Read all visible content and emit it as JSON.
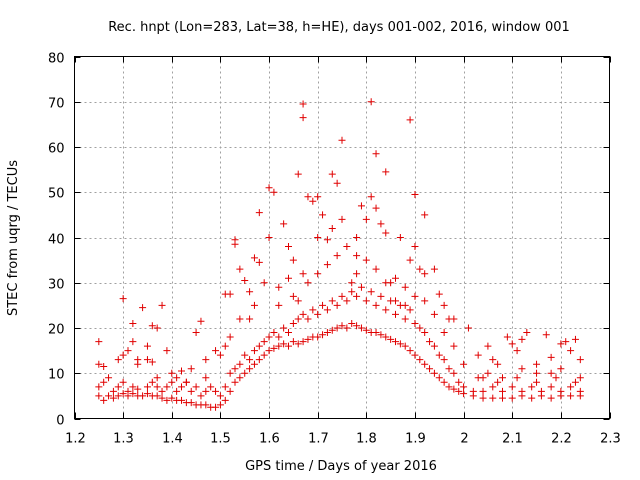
{
  "chart_data": {
    "type": "scatter",
    "title": "Rec. hnpt (Lon=283, Lat=38, h=HE), days 001-002, 2016, window 001",
    "xlabel": "GPS time / Days of year 2016",
    "ylabel": "STEC from uqrg / TECUs",
    "xlim": [
      1.2,
      2.3
    ],
    "ylim": [
      0,
      80
    ],
    "xticks": [
      1.2,
      1.3,
      1.4,
      1.5,
      1.6,
      1.7,
      1.8,
      1.9,
      2.0,
      2.1,
      2.2,
      2.3
    ],
    "xtick_labels": [
      "1.2",
      "1.3",
      "1.4",
      "1.5",
      "1.6",
      "1.7",
      "1.8",
      "1.9",
      "2",
      "2.1",
      "2.2",
      "2.3"
    ],
    "yticks": [
      0,
      10,
      20,
      30,
      40,
      50,
      60,
      70,
      80
    ],
    "ytick_labels": [
      "0",
      "10",
      "20",
      "30",
      "40",
      "50",
      "60",
      "70",
      "80"
    ],
    "grid": true,
    "marker": "+",
    "color": "#e00000",
    "points": [
      [
        1.25,
        17
      ],
      [
        1.25,
        12
      ],
      [
        1.26,
        11.5
      ],
      [
        1.3,
        26.5
      ],
      [
        1.32,
        21
      ],
      [
        1.32,
        17
      ],
      [
        1.34,
        24.5
      ],
      [
        1.36,
        20.5
      ],
      [
        1.37,
        20
      ],
      [
        1.38,
        25
      ],
      [
        1.29,
        13
      ],
      [
        1.3,
        14
      ],
      [
        1.31,
        15
      ],
      [
        1.33,
        13
      ],
      [
        1.35,
        13
      ],
      [
        1.35,
        16
      ],
      [
        1.36,
        12.5
      ],
      [
        1.39,
        15
      ],
      [
        1.4,
        10
      ],
      [
        1.42,
        10.5
      ],
      [
        1.44,
        11
      ],
      [
        1.45,
        19
      ],
      [
        1.46,
        21.5
      ],
      [
        1.47,
        13
      ],
      [
        1.49,
        15
      ],
      [
        1.5,
        14
      ],
      [
        1.51,
        16
      ],
      [
        1.52,
        18
      ],
      [
        1.51,
        27.5
      ],
      [
        1.52,
        27.5
      ],
      [
        1.53,
        39.5
      ],
      [
        1.53,
        38.5
      ],
      [
        1.54,
        33
      ],
      [
        1.55,
        30.5
      ],
      [
        1.56,
        22
      ],
      [
        1.57,
        25
      ],
      [
        1.57,
        35.5
      ],
      [
        1.58,
        45.5
      ],
      [
        1.58,
        34.5
      ],
      [
        1.6,
        51
      ],
      [
        1.6,
        40
      ],
      [
        1.61,
        50
      ],
      [
        1.62,
        29
      ],
      [
        1.63,
        43
      ],
      [
        1.64,
        38
      ],
      [
        1.65,
        35
      ],
      [
        1.65,
        27
      ],
      [
        1.66,
        54
      ],
      [
        1.67,
        32
      ],
      [
        1.67,
        69.5
      ],
      [
        1.67,
        66.5
      ],
      [
        1.68,
        49
      ],
      [
        1.69,
        48
      ],
      [
        1.7,
        49
      ],
      [
        1.7,
        40
      ],
      [
        1.71,
        45
      ],
      [
        1.72,
        39.5
      ],
      [
        1.73,
        54
      ],
      [
        1.73,
        42
      ],
      [
        1.74,
        52
      ],
      [
        1.75,
        61.5
      ],
      [
        1.75,
        44
      ],
      [
        1.77,
        30
      ],
      [
        1.78,
        40
      ],
      [
        1.78,
        36
      ],
      [
        1.79,
        47
      ],
      [
        1.8,
        44
      ],
      [
        1.81,
        70
      ],
      [
        1.81,
        49
      ],
      [
        1.82,
        58.5
      ],
      [
        1.82,
        46.5
      ],
      [
        1.83,
        43
      ],
      [
        1.84,
        54.5
      ],
      [
        1.84,
        41
      ],
      [
        1.85,
        30
      ],
      [
        1.86,
        26
      ],
      [
        1.87,
        40
      ],
      [
        1.88,
        25
      ],
      [
        1.89,
        66
      ],
      [
        1.89,
        35
      ],
      [
        1.9,
        38
      ],
      [
        1.9,
        49.5
      ],
      [
        1.91,
        33
      ],
      [
        1.92,
        45
      ],
      [
        1.92,
        32
      ],
      [
        1.94,
        33
      ],
      [
        1.95,
        27.5
      ],
      [
        1.96,
        25
      ],
      [
        1.97,
        22
      ],
      [
        1.98,
        22
      ],
      [
        2.01,
        20
      ],
      [
        2.03,
        14
      ],
      [
        2.05,
        16
      ],
      [
        2.06,
        13
      ],
      [
        2.07,
        12
      ],
      [
        2.09,
        18
      ],
      [
        2.1,
        16.5
      ],
      [
        2.11,
        15
      ],
      [
        2.12,
        17.5
      ],
      [
        2.13,
        19
      ],
      [
        2.15,
        12
      ],
      [
        2.17,
        18.5
      ],
      [
        2.18,
        13.5
      ],
      [
        2.2,
        16.5
      ],
      [
        2.21,
        17
      ],
      [
        2.22,
        15
      ],
      [
        2.23,
        17.5
      ],
      [
        2.24,
        13
      ],
      [
        2.24,
        9
      ],
      [
        2.2,
        11
      ],
      [
        2.18,
        10
      ],
      [
        2.15,
        10
      ],
      [
        2.12,
        11
      ],
      [
        2.08,
        9
      ],
      [
        2.05,
        10
      ],
      [
        2.04,
        9
      ],
      [
        1.25,
        7
      ],
      [
        1.26,
        8
      ],
      [
        1.27,
        9
      ],
      [
        1.28,
        6
      ],
      [
        1.29,
        7
      ],
      [
        1.3,
        8
      ],
      [
        1.31,
        6
      ],
      [
        1.32,
        7
      ],
      [
        1.33,
        6.5
      ],
      [
        1.35,
        7
      ],
      [
        1.36,
        8
      ],
      [
        1.37,
        7
      ],
      [
        1.38,
        6
      ],
      [
        1.39,
        7
      ],
      [
        1.4,
        8
      ],
      [
        1.41,
        6
      ],
      [
        1.42,
        7
      ],
      [
        1.43,
        8
      ],
      [
        1.44,
        6
      ],
      [
        1.45,
        7
      ],
      [
        1.46,
        5
      ],
      [
        1.47,
        6
      ],
      [
        1.48,
        7
      ],
      [
        1.49,
        6
      ],
      [
        1.5,
        5
      ],
      [
        1.51,
        7
      ],
      [
        1.52,
        10
      ],
      [
        1.53,
        11
      ],
      [
        1.54,
        12
      ],
      [
        1.55,
        14
      ],
      [
        1.56,
        13
      ],
      [
        1.57,
        15
      ],
      [
        1.58,
        16
      ],
      [
        1.59,
        17
      ],
      [
        1.6,
        18
      ],
      [
        1.61,
        19
      ],
      [
        1.62,
        18
      ],
      [
        1.63,
        20
      ],
      [
        1.64,
        19
      ],
      [
        1.65,
        21
      ],
      [
        1.66,
        22
      ],
      [
        1.67,
        23
      ],
      [
        1.68,
        22
      ],
      [
        1.69,
        24
      ],
      [
        1.7,
        23
      ],
      [
        1.71,
        25
      ],
      [
        1.72,
        24
      ],
      [
        1.73,
        26
      ],
      [
        1.74,
        25
      ],
      [
        1.75,
        27
      ],
      [
        1.76,
        26
      ],
      [
        1.77,
        28
      ],
      [
        1.78,
        27
      ],
      [
        1.79,
        29
      ],
      [
        1.8,
        26
      ],
      [
        1.81,
        28
      ],
      [
        1.82,
        25
      ],
      [
        1.83,
        27
      ],
      [
        1.84,
        24
      ],
      [
        1.85,
        26
      ],
      [
        1.86,
        23
      ],
      [
        1.87,
        25
      ],
      [
        1.88,
        22
      ],
      [
        1.89,
        24
      ],
      [
        1.9,
        21
      ],
      [
        1.91,
        20
      ],
      [
        1.92,
        19
      ],
      [
        1.93,
        17
      ],
      [
        1.94,
        16
      ],
      [
        1.95,
        14
      ],
      [
        1.96,
        13
      ],
      [
        1.97,
        11
      ],
      [
        1.98,
        10
      ],
      [
        1.99,
        8
      ],
      [
        2.0,
        7
      ],
      [
        2.02,
        6
      ],
      [
        2.04,
        6
      ],
      [
        2.06,
        7
      ],
      [
        2.08,
        6
      ],
      [
        2.1,
        7
      ],
      [
        2.12,
        6
      ],
      [
        2.14,
        7
      ],
      [
        2.16,
        6
      ],
      [
        2.18,
        7
      ],
      [
        2.2,
        6
      ],
      [
        2.22,
        7
      ],
      [
        2.24,
        6
      ],
      [
        1.25,
        5
      ],
      [
        1.26,
        4
      ],
      [
        1.27,
        5
      ],
      [
        1.28,
        4.5
      ],
      [
        1.29,
        5
      ],
      [
        1.3,
        5.5
      ],
      [
        1.31,
        5
      ],
      [
        1.32,
        5.5
      ],
      [
        1.33,
        5
      ],
      [
        1.34,
        5
      ],
      [
        1.35,
        5.5
      ],
      [
        1.36,
        5
      ],
      [
        1.37,
        5
      ],
      [
        1.38,
        4.5
      ],
      [
        1.39,
        4
      ],
      [
        1.4,
        4.5
      ],
      [
        1.41,
        4
      ],
      [
        1.42,
        4
      ],
      [
        1.43,
        3.5
      ],
      [
        1.44,
        3.5
      ],
      [
        1.45,
        3
      ],
      [
        1.46,
        3
      ],
      [
        1.47,
        3
      ],
      [
        1.48,
        2.5
      ],
      [
        1.49,
        2.5
      ],
      [
        1.5,
        3
      ],
      [
        1.51,
        4
      ],
      [
        1.52,
        6
      ],
      [
        1.53,
        8
      ],
      [
        1.54,
        9
      ],
      [
        1.55,
        10
      ],
      [
        1.56,
        11
      ],
      [
        1.57,
        12
      ],
      [
        1.58,
        13
      ],
      [
        1.59,
        14
      ],
      [
        1.6,
        15
      ],
      [
        1.61,
        15.5
      ],
      [
        1.62,
        16
      ],
      [
        1.63,
        16.5
      ],
      [
        1.64,
        16
      ],
      [
        1.65,
        17
      ],
      [
        1.66,
        16.5
      ],
      [
        1.67,
        17
      ],
      [
        1.68,
        17.5
      ],
      [
        1.69,
        18
      ],
      [
        1.7,
        18
      ],
      [
        1.71,
        18.5
      ],
      [
        1.72,
        19
      ],
      [
        1.73,
        19.5
      ],
      [
        1.74,
        20
      ],
      [
        1.75,
        20.5
      ],
      [
        1.76,
        20
      ],
      [
        1.77,
        21
      ],
      [
        1.78,
        20.5
      ],
      [
        1.79,
        20
      ],
      [
        1.8,
        19.5
      ],
      [
        1.81,
        19
      ],
      [
        1.82,
        19
      ],
      [
        1.83,
        18.5
      ],
      [
        1.84,
        18
      ],
      [
        1.85,
        17.5
      ],
      [
        1.86,
        17
      ],
      [
        1.87,
        16.5
      ],
      [
        1.88,
        16
      ],
      [
        1.89,
        15
      ],
      [
        1.9,
        14
      ],
      [
        1.91,
        13
      ],
      [
        1.92,
        12
      ],
      [
        1.93,
        11
      ],
      [
        1.94,
        10
      ],
      [
        1.95,
        9
      ],
      [
        1.96,
        8
      ],
      [
        1.97,
        7
      ],
      [
        1.98,
        6.5
      ],
      [
        1.99,
        6
      ],
      [
        2.0,
        5.5
      ],
      [
        2.02,
        5
      ],
      [
        2.04,
        4.5
      ],
      [
        2.06,
        4.5
      ],
      [
        2.08,
        4.5
      ],
      [
        2.1,
        4.5
      ],
      [
        2.12,
        5
      ],
      [
        2.14,
        4.5
      ],
      [
        2.16,
        5
      ],
      [
        2.18,
        4.5
      ],
      [
        2.2,
        5
      ],
      [
        2.22,
        5
      ],
      [
        2.24,
        5
      ],
      [
        1.33,
        12
      ],
      [
        1.37,
        9
      ],
      [
        1.41,
        9
      ],
      [
        1.43,
        8
      ],
      [
        1.47,
        9
      ],
      [
        1.54,
        22
      ],
      [
        1.56,
        28
      ],
      [
        1.59,
        30
      ],
      [
        1.62,
        25
      ],
      [
        1.64,
        31
      ],
      [
        1.66,
        26
      ],
      [
        1.68,
        30
      ],
      [
        1.7,
        32
      ],
      [
        1.72,
        34
      ],
      [
        1.74,
        36
      ],
      [
        1.76,
        38
      ],
      [
        1.78,
        32
      ],
      [
        1.8,
        35
      ],
      [
        1.82,
        33
      ],
      [
        1.84,
        30
      ],
      [
        1.86,
        31
      ],
      [
        1.88,
        29
      ],
      [
        1.9,
        27
      ],
      [
        1.92,
        26
      ],
      [
        1.94,
        23
      ],
      [
        1.96,
        19
      ],
      [
        1.98,
        16
      ],
      [
        2.0,
        12
      ],
      [
        2.03,
        9
      ],
      [
        2.07,
        8
      ],
      [
        2.11,
        9
      ],
      [
        2.15,
        8
      ],
      [
        2.19,
        9
      ],
      [
        2.23,
        8
      ]
    ]
  }
}
